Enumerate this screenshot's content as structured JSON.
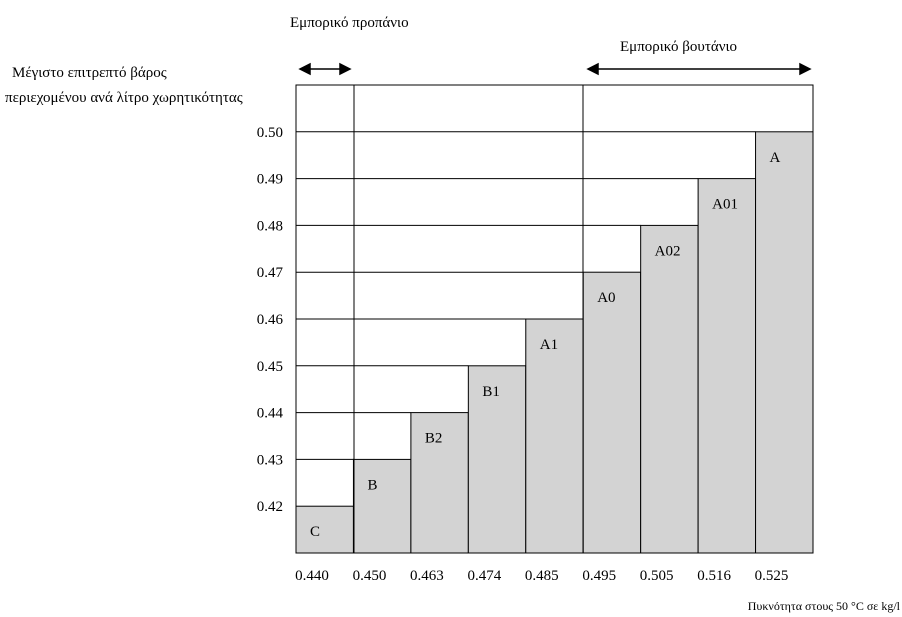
{
  "chart_data": {
    "type": "bar",
    "ylabel_lines": [
      "Μέγιστο επιτρεπτό βάρος",
      "περιεχομένου ανά λίτρο χωρητικότητας"
    ],
    "xlabel": "Πυκνότητα στους 50 °C σε kg/l",
    "propane_label": "Εμπορικό προπάνιο",
    "butane_label": "Εμπορικό βουτάνιο",
    "x_edges": [
      "0.440",
      "0.450",
      "0.463",
      "0.474",
      "0.485",
      "0.495",
      "0.505",
      "0.516",
      "0.525"
    ],
    "y_ticks": [
      "0.50",
      "0.49",
      "0.48",
      "0.47",
      "0.46",
      "0.45",
      "0.44",
      "0.43",
      "0.42"
    ],
    "ylim": [
      0.41,
      0.51
    ],
    "categories": [
      "C",
      "B",
      "B2",
      "B1",
      "A1",
      "A0",
      "A02",
      "A01",
      "A"
    ],
    "values": [
      0.42,
      0.43,
      0.44,
      0.45,
      0.46,
      0.47,
      0.48,
      0.49,
      0.5
    ],
    "bar_color": "#d3d3d3",
    "grid": true
  }
}
